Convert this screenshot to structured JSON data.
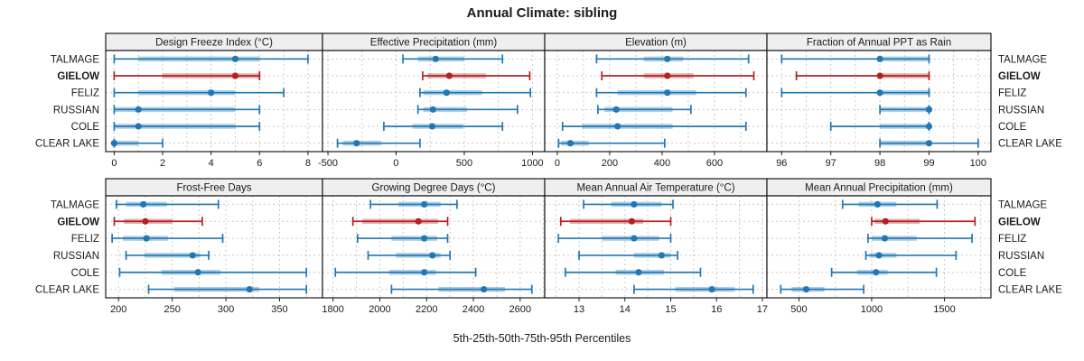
{
  "chart_data": {
    "type": "dotplot-intervals",
    "title": "Annual Climate: sibling",
    "xlabel": "5th-25th-50th-75th-95th Percentiles",
    "percentile_order": [
      "p5",
      "p25",
      "p50",
      "p75",
      "p95"
    ],
    "sites": [
      "TALMAGE",
      "GIELOW",
      "FELIZ",
      "RUSSIAN",
      "COLE",
      "CLEAR LAKE"
    ],
    "highlight_site": "GIELOW",
    "legend_position": "none",
    "grid": "dashed",
    "panels": [
      {
        "title": "Design Freeze Index (°C)",
        "row": 0,
        "col": 0,
        "ticks": [
          0,
          2,
          4,
          6,
          8
        ],
        "xlim": [
          -0.35,
          8.6
        ],
        "values": {
          "TALMAGE": [
            0,
            1,
            5,
            6,
            8
          ],
          "GIELOW": [
            0,
            2,
            5,
            6,
            6
          ],
          "FELIZ": [
            0,
            1,
            4,
            5,
            7
          ],
          "RUSSIAN": [
            0,
            0,
            1,
            5,
            6
          ],
          "COLE": [
            0,
            0,
            1,
            5,
            6
          ],
          "CLEAR LAKE": [
            0,
            0,
            0,
            1,
            2
          ]
        }
      },
      {
        "title": "Effective Precipitation (mm)",
        "row": 0,
        "col": 1,
        "ticks": [
          -500,
          0,
          500,
          1000
        ],
        "xlim": [
          -540,
          1090
        ],
        "values": {
          "TALMAGE": [
            50,
            160,
            290,
            500,
            780
          ],
          "GIELOW": [
            195,
            230,
            390,
            660,
            980
          ],
          "FELIZ": [
            175,
            200,
            370,
            630,
            985
          ],
          "RUSSIAN": [
            160,
            200,
            270,
            520,
            890
          ],
          "COLE": [
            -90,
            120,
            265,
            490,
            780
          ],
          "CLEAR LAKE": [
            -430,
            -390,
            -290,
            -110,
            175
          ]
        }
      },
      {
        "title": "Elevation (m)",
        "row": 0,
        "col": 2,
        "ticks": [
          0,
          200,
          400,
          600
        ],
        "xlim": [
          -48,
          800
        ],
        "values": {
          "TALMAGE": [
            150,
            330,
            420,
            480,
            730
          ],
          "GIELOW": [
            170,
            330,
            420,
            520,
            750
          ],
          "FELIZ": [
            150,
            230,
            420,
            530,
            720
          ],
          "RUSSIAN": [
            155,
            180,
            225,
            440,
            510
          ],
          "COLE": [
            20,
            95,
            230,
            440,
            720
          ],
          "CLEAR LAKE": [
            5,
            15,
            50,
            120,
            410
          ]
        }
      },
      {
        "title": "Fraction of Annual PPT as Rain",
        "row": 0,
        "col": 3,
        "ticks": [
          96,
          97,
          98,
          99,
          100
        ],
        "xlim": [
          95.7,
          100.26
        ],
        "values": {
          "TALMAGE": [
            96,
            98,
            98,
            99,
            99
          ],
          "GIELOW": [
            96.3,
            98,
            98,
            99,
            99
          ],
          "FELIZ": [
            96,
            98,
            98,
            99,
            99
          ],
          "RUSSIAN": [
            98,
            98,
            99,
            99,
            99
          ],
          "COLE": [
            97,
            98,
            99,
            99,
            99
          ],
          "CLEAR LAKE": [
            98,
            98,
            99,
            99,
            100
          ]
        }
      },
      {
        "title": "Frost-Free Days",
        "row": 1,
        "col": 0,
        "ticks": [
          200,
          250,
          300,
          350
        ],
        "xlim": [
          188,
          390
        ],
        "values": {
          "TALMAGE": [
            198,
            207,
            223,
            245,
            293
          ],
          "GIELOW": [
            196,
            205,
            225,
            250,
            278
          ],
          "FELIZ": [
            194,
            204,
            226,
            246,
            297
          ],
          "RUSSIAN": [
            207,
            224,
            269,
            276,
            284
          ],
          "COLE": [
            201,
            240,
            274,
            295,
            375
          ],
          "CLEAR LAKE": [
            228,
            252,
            322,
            331,
            375
          ]
        }
      },
      {
        "title": "Growing Degree Days (°C)",
        "row": 1,
        "col": 1,
        "ticks": [
          1800,
          2000,
          2200,
          2400,
          2600
        ],
        "xlim": [
          1755,
          2705
        ],
        "values": {
          "TALMAGE": [
            1960,
            2080,
            2190,
            2260,
            2330
          ],
          "GIELOW": [
            1885,
            1925,
            2165,
            2250,
            2290
          ],
          "FELIZ": [
            1905,
            2050,
            2190,
            2245,
            2290
          ],
          "RUSSIAN": [
            1950,
            2070,
            2225,
            2260,
            2300
          ],
          "COLE": [
            1810,
            2040,
            2190,
            2240,
            2410
          ],
          "CLEAR LAKE": [
            2050,
            2250,
            2445,
            2535,
            2650
          ]
        }
      },
      {
        "title": "Mean Annual Air Temperature (°C)",
        "row": 1,
        "col": 2,
        "ticks": [
          13,
          14,
          15,
          16,
          17
        ],
        "xlim": [
          12.25,
          17.1
        ],
        "values": {
          "TALMAGE": [
            13.1,
            13.7,
            14.2,
            14.8,
            15.05
          ],
          "GIELOW": [
            12.6,
            12.8,
            14.15,
            14.4,
            15.0
          ],
          "FELIZ": [
            12.55,
            13.5,
            14.2,
            14.75,
            15.0
          ],
          "RUSSIAN": [
            13.0,
            14.2,
            14.8,
            15.0,
            15.15
          ],
          "COLE": [
            12.7,
            13.8,
            14.3,
            14.85,
            15.65
          ],
          "CLEAR LAKE": [
            14.2,
            15.1,
            15.9,
            16.4,
            16.8
          ]
        }
      },
      {
        "title": "Mean Annual Precipitation (mm)",
        "row": 1,
        "col": 3,
        "ticks": [
          500,
          1000,
          1500
        ],
        "xlim": [
          280,
          1820
        ],
        "values": {
          "TALMAGE": [
            800,
            910,
            1040,
            1170,
            1450
          ],
          "GIELOW": [
            1000,
            1020,
            1095,
            1330,
            1710
          ],
          "FELIZ": [
            975,
            1000,
            1090,
            1310,
            1690
          ],
          "RUSSIAN": [
            960,
            985,
            1050,
            1170,
            1580
          ],
          "COLE": [
            725,
            900,
            1030,
            1110,
            1445
          ],
          "CLEAR LAKE": [
            375,
            450,
            550,
            675,
            945
          ]
        }
      }
    ]
  },
  "colors": {
    "series_blue": "#2077b4",
    "highlight_red": "#b22222",
    "band_opacity": "0.35",
    "gridline": "#c9c9c9",
    "strip_bg": "#efefef",
    "panel_border": "#1a1a1a",
    "text": "#1a1a1a"
  }
}
